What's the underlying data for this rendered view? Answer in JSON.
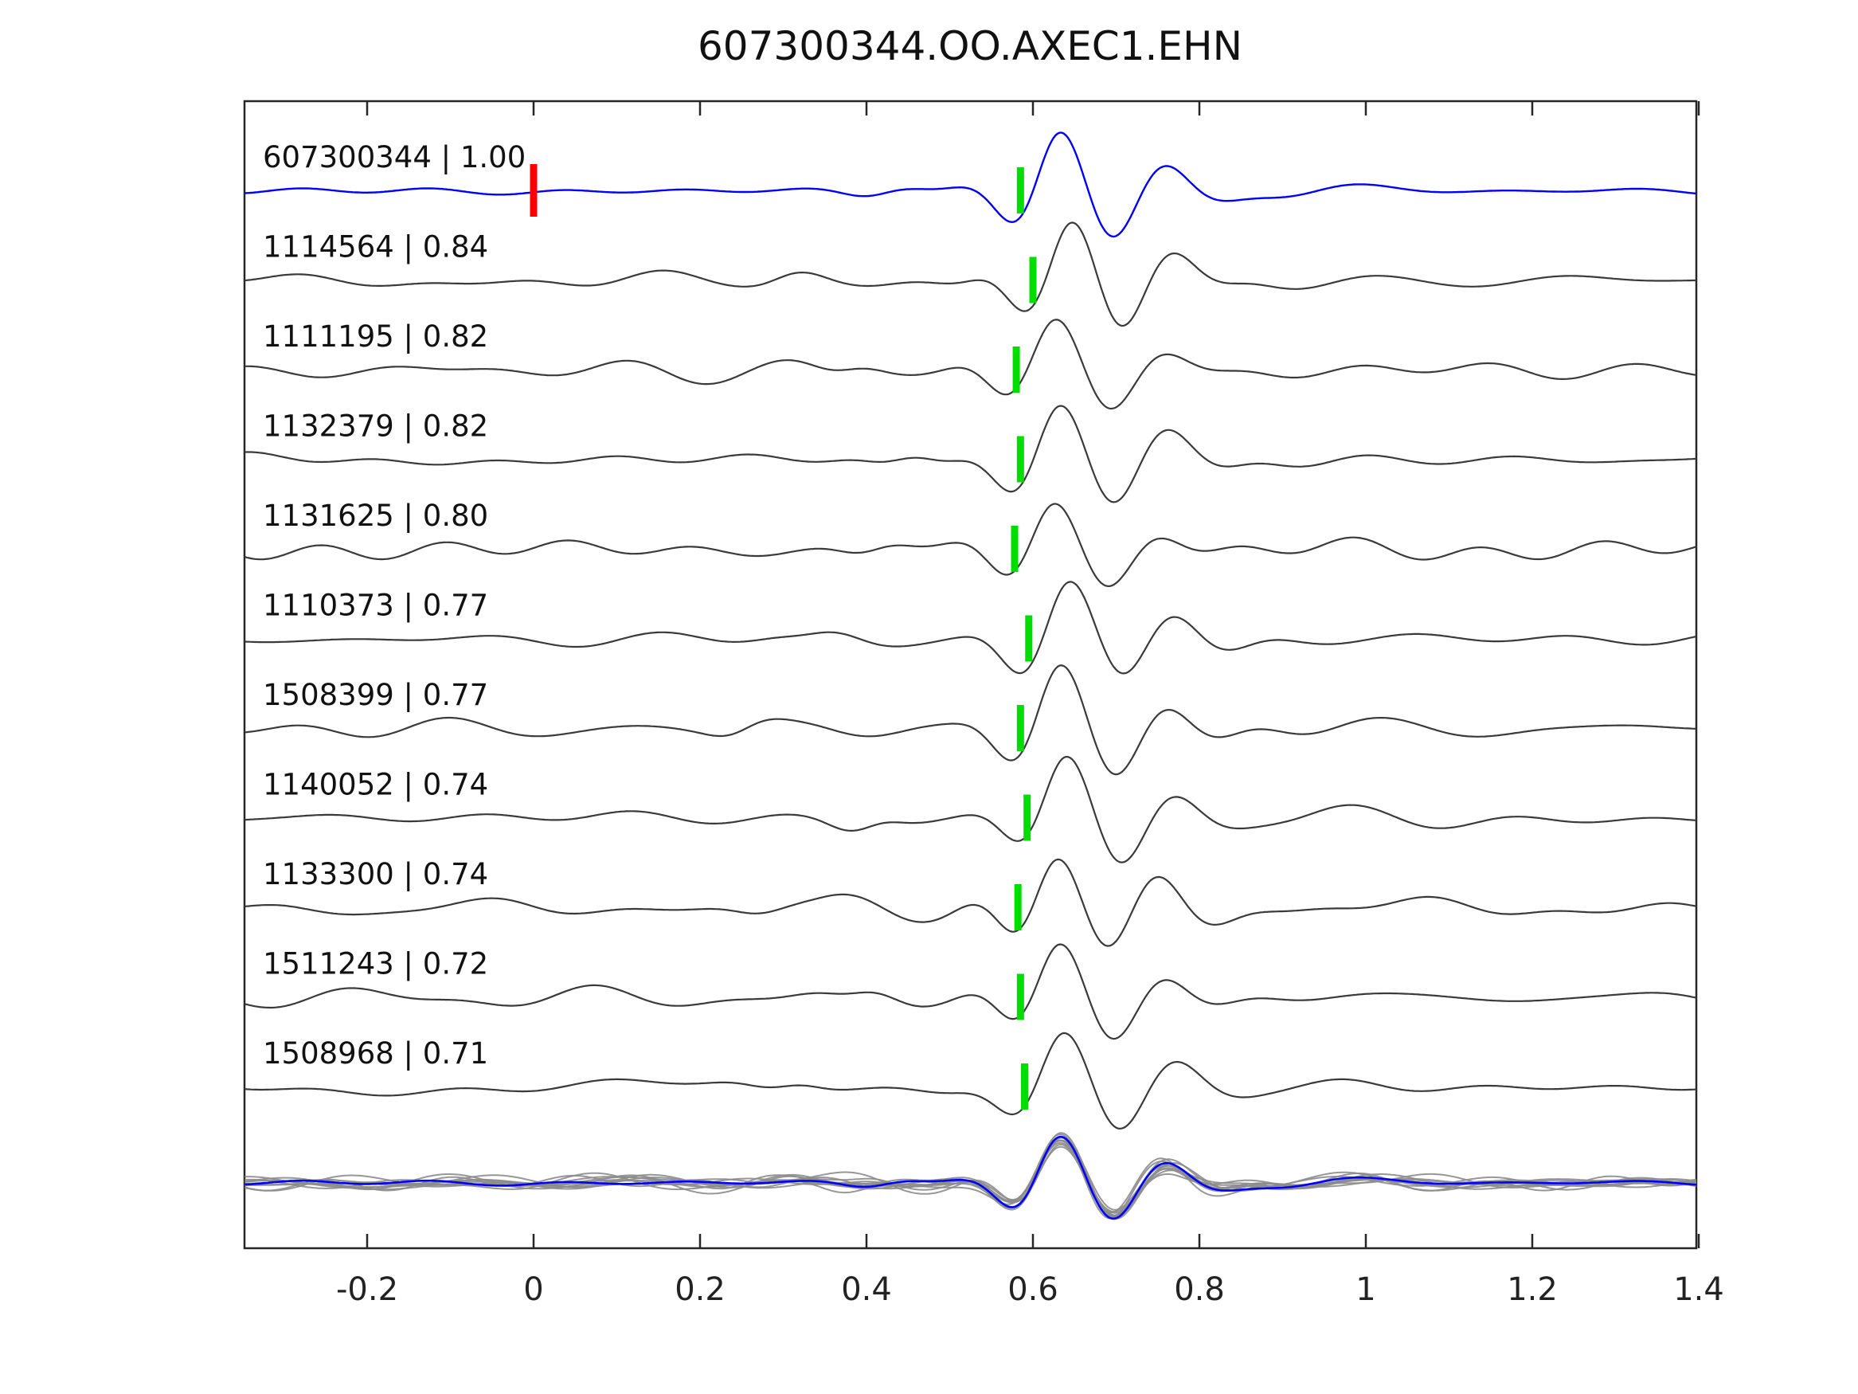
{
  "title": "607300344.OO.AXEC1.EHN",
  "colors": {
    "template_trace": "#0000ff",
    "match_trace": "#3a3a3a",
    "pick_marker": "#00dd00",
    "template_pick_marker": "#ff0000",
    "overlay_gray": "#8c8c8c",
    "axis": "#262626"
  },
  "chart_data": {
    "type": "line",
    "title": "607300344.OO.AXEC1.EHN",
    "xlabel": "",
    "ylabel": "",
    "xlim": [
      -0.347,
      1.397
    ],
    "x_ticks": [
      -0.2,
      0,
      0.2,
      0.4,
      0.6,
      0.8,
      1,
      1.2,
      1.4
    ],
    "x_tick_labels": [
      "-0.2",
      "0",
      "0.2",
      "0.4",
      "0.6",
      "0.8",
      "1",
      "1.2",
      "1.4"
    ],
    "grid": false,
    "legend": "none",
    "template_pick_time": 0.0,
    "traces": [
      {
        "id": "607300344",
        "correlation": 1.0,
        "label": "607300344 | 1.00",
        "pick_time": 0.585,
        "is_template": true,
        "seed": 11
      },
      {
        "id": "1114564",
        "correlation": 0.84,
        "label": "1114564 | 0.84",
        "pick_time": 0.6,
        "is_template": false,
        "seed": 23
      },
      {
        "id": "1111195",
        "correlation": 0.82,
        "label": "1111195 | 0.82",
        "pick_time": 0.58,
        "is_template": false,
        "seed": 37
      },
      {
        "id": "1132379",
        "correlation": 0.82,
        "label": "1132379 | 0.82",
        "pick_time": 0.585,
        "is_template": false,
        "seed": 41
      },
      {
        "id": "1131625",
        "correlation": 0.8,
        "label": "1131625 | 0.80",
        "pick_time": 0.578,
        "is_template": false,
        "seed": 53
      },
      {
        "id": "1110373",
        "correlation": 0.77,
        "label": "1110373 | 0.77",
        "pick_time": 0.595,
        "is_template": false,
        "seed": 67
      },
      {
        "id": "1508399",
        "correlation": 0.77,
        "label": "1508399 | 0.77",
        "pick_time": 0.585,
        "is_template": false,
        "seed": 71
      },
      {
        "id": "1140052",
        "correlation": 0.74,
        "label": "1140052 | 0.74",
        "pick_time": 0.593,
        "is_template": false,
        "seed": 83
      },
      {
        "id": "1133300",
        "correlation": 0.74,
        "label": "1133300 | 0.74",
        "pick_time": 0.582,
        "is_template": false,
        "seed": 89
      },
      {
        "id": "1511243",
        "correlation": 0.72,
        "label": "1511243 | 0.72",
        "pick_time": 0.585,
        "is_template": false,
        "seed": 97
      },
      {
        "id": "1508968",
        "correlation": 0.71,
        "label": "1508968 | 0.71",
        "pick_time": 0.59,
        "is_template": false,
        "seed": 103
      }
    ],
    "overlay_row": {
      "present": true,
      "description": "all traces overlaid aligned on pick, gray, with template trace in blue on top"
    }
  }
}
